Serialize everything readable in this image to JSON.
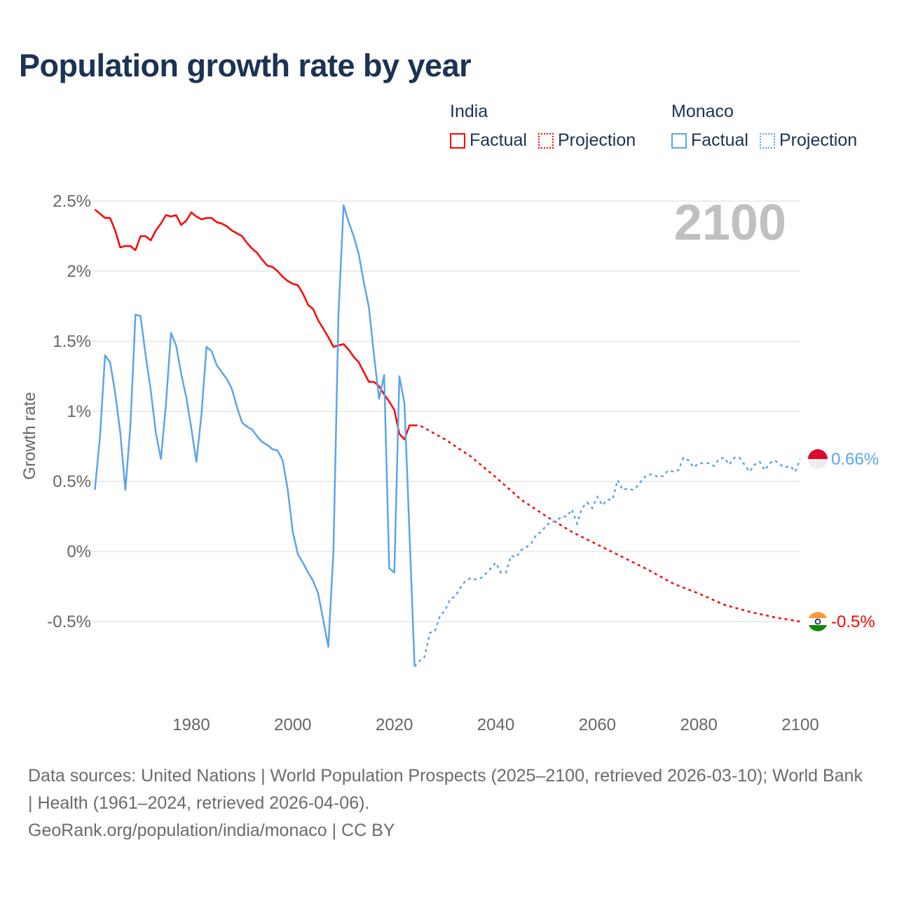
{
  "chart_data": {
    "type": "line",
    "title": "Population growth rate by year",
    "ylabel": "Growth rate",
    "xlabel": "",
    "xlim": [
      1961,
      2100
    ],
    "ylim": [
      -1.0,
      2.5
    ],
    "x_ticks": [
      1980,
      2000,
      2020,
      2040,
      2060,
      2080,
      2100
    ],
    "y_ticks": [
      {
        "v": 2.5,
        "label": "2.5%"
      },
      {
        "v": 2,
        "label": "2%"
      },
      {
        "v": 1.5,
        "label": "1.5%"
      },
      {
        "v": 1,
        "label": "1%"
      },
      {
        "v": 0.5,
        "label": "0.5%"
      },
      {
        "v": 0,
        "label": "0%"
      },
      {
        "v": -0.5,
        "label": "-0.5%"
      }
    ],
    "grid": true,
    "year_display": "2100",
    "legend": [
      {
        "group": "India",
        "factual": "Factual",
        "projection": "Projection"
      },
      {
        "group": "Monaco",
        "factual": "Factual",
        "projection": "Projection"
      }
    ],
    "series": [
      {
        "name": "India",
        "color": "#ff0000",
        "factual_start": 1961,
        "factual": [
          2.44,
          2.41,
          2.38,
          2.38,
          2.29,
          2.17,
          2.18,
          2.18,
          2.15,
          2.25,
          2.25,
          2.22,
          2.29,
          2.34,
          2.4,
          2.39,
          2.4,
          2.33,
          2.36,
          2.42,
          2.39,
          2.37,
          2.38,
          2.38,
          2.35,
          2.34,
          2.32,
          2.29,
          2.27,
          2.25,
          2.2,
          2.16,
          2.13,
          2.08,
          2.04,
          2.03,
          2.0,
          1.96,
          1.93,
          1.91,
          1.9,
          1.84,
          1.76,
          1.73,
          1.65,
          1.59,
          1.53,
          1.46,
          1.47,
          1.48,
          1.44,
          1.39,
          1.35,
          1.28,
          1.21,
          1.21,
          1.18,
          1.12,
          1.07,
          1.01,
          0.84,
          0.8,
          0.9,
          0.9
        ],
        "projection_years": [
          2024,
          2025,
          2030,
          2035,
          2040,
          2045,
          2050,
          2055,
          2060,
          2065,
          2070,
          2075,
          2080,
          2085,
          2090,
          2095,
          2100
        ],
        "projection": [
          0.9,
          0.9,
          0.8,
          0.68,
          0.53,
          0.37,
          0.25,
          0.14,
          0.05,
          -0.04,
          -0.13,
          -0.23,
          -0.3,
          -0.38,
          -0.43,
          -0.47,
          -0.5
        ],
        "end_label": "-0.5%"
      },
      {
        "name": "Monaco",
        "color": "#5ba5ea",
        "factual_start": 1961,
        "factual": [
          0.44,
          0.82,
          1.4,
          1.35,
          1.13,
          0.85,
          0.44,
          0.9,
          1.69,
          1.68,
          1.4,
          1.15,
          0.85,
          0.66,
          1.05,
          1.56,
          1.47,
          1.27,
          1.1,
          0.88,
          0.64,
          0.98,
          1.46,
          1.43,
          1.33,
          1.28,
          1.23,
          1.16,
          1.03,
          0.92,
          0.89,
          0.87,
          0.82,
          0.78,
          0.76,
          0.73,
          0.72,
          0.65,
          0.44,
          0.14,
          -0.02,
          -0.08,
          -0.15,
          -0.21,
          -0.3,
          -0.49,
          -0.68,
          0.0,
          1.69,
          2.47,
          2.35,
          2.25,
          2.12,
          1.92,
          1.74,
          1.4,
          1.09,
          1.26,
          -0.12,
          -0.15,
          1.25,
          1.06,
          0.12,
          -0.82
        ],
        "projection_start": 2024,
        "projection": [
          -0.82,
          -0.78,
          -0.75,
          -0.58,
          -0.57,
          -0.46,
          -0.42,
          -0.34,
          -0.32,
          -0.26,
          -0.21,
          -0.19,
          -0.2,
          -0.19,
          -0.16,
          -0.12,
          -0.08,
          -0.15,
          -0.15,
          -0.03,
          -0.04,
          0.01,
          0.03,
          0.06,
          0.12,
          0.14,
          0.19,
          0.21,
          0.22,
          0.25,
          0.25,
          0.3,
          0.2,
          0.31,
          0.35,
          0.31,
          0.39,
          0.33,
          0.37,
          0.37,
          0.51,
          0.44,
          0.45,
          0.44,
          0.47,
          0.52,
          0.55,
          0.55,
          0.53,
          0.54,
          0.58,
          0.57,
          0.58,
          0.67,
          0.65,
          0.6,
          0.63,
          0.63,
          0.63,
          0.61,
          0.66,
          0.67,
          0.62,
          0.67,
          0.67,
          0.62,
          0.57,
          0.62,
          0.64,
          0.58,
          0.63,
          0.65,
          0.62,
          0.6,
          0.61,
          0.57,
          0.66
        ],
        "end_label": "0.66%"
      }
    ]
  },
  "footer": {
    "sources": "Data sources: United Nations | World Population Prospects (2025–2100, retrieved 2026-03-10); World Bank | Health (1961–2024, retrieved 2026-04-06).",
    "credit": "GeoRank.org/population/india/monaco | CC BY"
  }
}
